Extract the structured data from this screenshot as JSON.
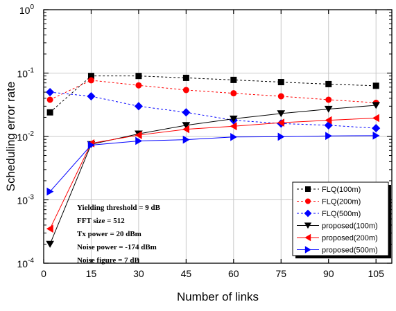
{
  "chart_data": {
    "type": "line",
    "xlabel": "Number of links",
    "ylabel": "Scheduling error rate",
    "xlim": [
      0,
      110
    ],
    "ylim": [
      0.0001,
      1
    ],
    "yscale": "log",
    "xticks": [
      0,
      15,
      30,
      45,
      60,
      75,
      90,
      105
    ],
    "yticks": [
      {
        "value": 0.0001,
        "base": "10",
        "exp": "-4"
      },
      {
        "value": 0.001,
        "base": "10",
        "exp": "-3"
      },
      {
        "value": 0.01,
        "base": "10",
        "exp": "-2"
      },
      {
        "value": 0.1,
        "base": "10",
        "exp": "-1"
      },
      {
        "value": 1,
        "base": "10",
        "exp": "0"
      }
    ],
    "grid": true,
    "legend_position": "bottom-right",
    "series": [
      {
        "name": "FLQ(100m)",
        "color": "#000000",
        "marker": "square",
        "dash": "dashed",
        "x": [
          2,
          15,
          30,
          45,
          60,
          75,
          90,
          105
        ],
        "y": [
          0.024,
          0.09,
          0.09,
          0.084,
          0.078,
          0.072,
          0.067,
          0.063
        ]
      },
      {
        "name": "FLQ(200m)",
        "color": "#ff0000",
        "marker": "circle",
        "dash": "dashed",
        "x": [
          2,
          15,
          30,
          45,
          60,
          75,
          90,
          105
        ],
        "y": [
          0.038,
          0.077,
          0.064,
          0.054,
          0.048,
          0.043,
          0.038,
          0.034
        ]
      },
      {
        "name": "FLQ(500m)",
        "color": "#0000ff",
        "marker": "diamond",
        "dash": "dashed",
        "x": [
          2,
          15,
          30,
          45,
          60,
          75,
          90,
          105
        ],
        "y": [
          0.05,
          0.043,
          0.03,
          0.024,
          0.018,
          0.016,
          0.015,
          0.0135
        ]
      },
      {
        "name": "proposed(100m)",
        "color": "#000000",
        "marker": "triangle-down",
        "dash": "solid",
        "x": [
          2,
          15,
          30,
          45,
          60,
          75,
          90,
          105
        ],
        "y": [
          0.0002,
          0.0075,
          0.011,
          0.015,
          0.019,
          0.023,
          0.027,
          0.031
        ]
      },
      {
        "name": "proposed(200m)",
        "color": "#ff0000",
        "marker": "triangle-left",
        "dash": "solid",
        "x": [
          2,
          15,
          30,
          45,
          60,
          75,
          90,
          105
        ],
        "y": [
          0.00035,
          0.0078,
          0.0105,
          0.013,
          0.0145,
          0.0165,
          0.018,
          0.0195
        ]
      },
      {
        "name": "proposed(500m)",
        "color": "#0000ff",
        "marker": "triangle-right",
        "dash": "solid",
        "x": [
          2,
          15,
          30,
          45,
          60,
          75,
          90,
          105
        ],
        "y": [
          0.00135,
          0.0073,
          0.0085,
          0.0089,
          0.0098,
          0.0099,
          0.0102,
          0.0103
        ]
      }
    ],
    "annotations": [
      "Yielding threshold = 9 dB",
      "FFT size = 512",
      "Tx power = 20 dBm",
      "Noise power = -174 dBm",
      "Noise figure = 7 dB"
    ]
  }
}
